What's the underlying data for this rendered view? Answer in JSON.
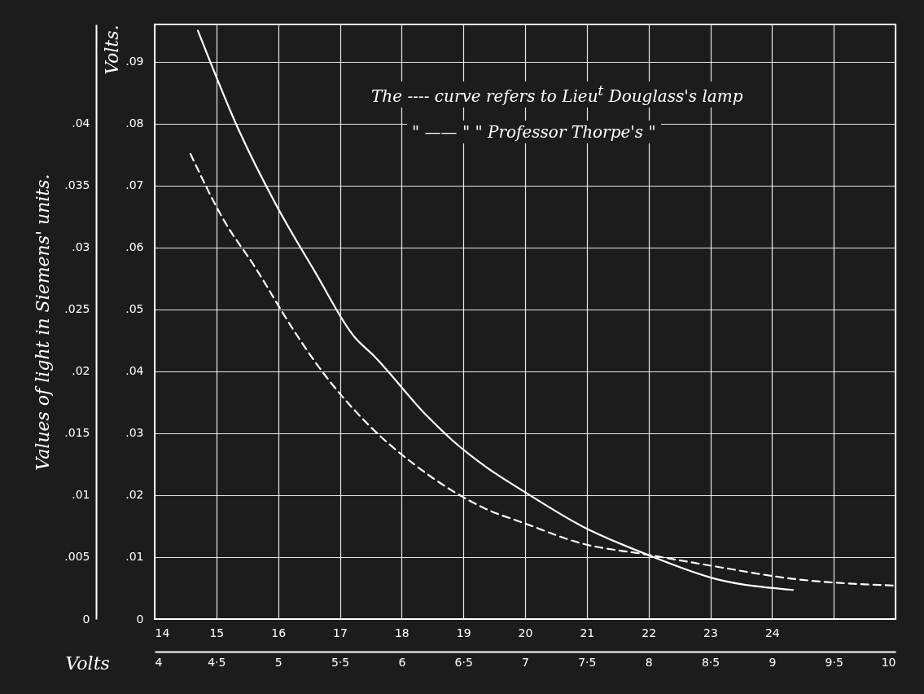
{
  "chart_data": {
    "type": "line",
    "xlabel": "Volts",
    "ylabel": "Volts.",
    "y2label": "Values of light in Siemens' units.",
    "annotations": [
      "The ---- curve refers to Lieu$^{t}$ Douglass's lamp",
      "\" —— \" \" Professor Thorpe's \""
    ],
    "xlim": [
      4,
      10
    ],
    "xticks": [
      4,
      {
        "value": 4.5,
        "label": "4·5"
      },
      5,
      {
        "value": 5.5,
        "label": "5·5"
      },
      6,
      {
        "value": 6.5,
        "label": "6·5"
      },
      7,
      {
        "value": 7.5,
        "label": "7·5"
      },
      8,
      {
        "value": 8.5,
        "label": "8·5"
      },
      9,
      {
        "value": 9.5,
        "label": "9·5"
      },
      10
    ],
    "x2lim": [
      14,
      26
    ],
    "x2ticks": [
      14,
      15,
      16,
      17,
      18,
      19,
      20,
      21,
      22,
      23,
      24
    ],
    "ylim": [
      0,
      0.096
    ],
    "yticks": [
      0,
      {
        "value": 0.01,
        "label": ".01"
      },
      {
        "value": 0.02,
        "label": ".02"
      },
      {
        "value": 0.03,
        "label": ".03"
      },
      {
        "value": 0.04,
        "label": ".04"
      },
      {
        "value": 0.05,
        "label": ".05"
      },
      {
        "value": 0.06,
        "label": ".06"
      },
      {
        "value": 0.07,
        "label": ".07"
      },
      {
        "value": 0.08,
        "label": ".08"
      },
      {
        "value": 0.09,
        "label": ".09"
      }
    ],
    "y2lim": [
      0,
      0.048
    ],
    "y2ticks": [
      0,
      {
        "value": 0.005,
        "label": ".005"
      },
      {
        "value": 0.01,
        "label": ".01"
      },
      {
        "value": 0.015,
        "label": ".015"
      },
      {
        "value": 0.02,
        "label": ".02"
      },
      {
        "value": 0.025,
        "label": ".025"
      },
      {
        "value": 0.03,
        "label": ".03"
      },
      {
        "value": 0.035,
        "label": ".035"
      },
      {
        "value": 0.04,
        "label": ".04"
      }
    ],
    "grid": true,
    "series": [
      {
        "color": "#ffffff",
        "line_style": "solid",
        "x": [
          4.35,
          4.68,
          4.98,
          5.3,
          5.62,
          5.77,
          6.21,
          6.42,
          6.68,
          6.99,
          7.46,
          7.99,
          8.54,
          9.17
        ],
        "values": [
          0.095,
          0.079,
          0.067,
          0.056,
          0.0455,
          0.0426,
          0.0327,
          0.0287,
          0.0246,
          0.0206,
          0.015,
          0.0104,
          0.0065,
          0.0047
        ]
      },
      {
        "color": "#ffffff",
        "line_style": "dashed",
        "x": [
          4.29,
          4.56,
          4.81,
          5.13,
          5.3,
          5.74,
          6.12,
          6.42,
          6.68,
          6.99,
          7.46,
          7.99,
          8.54,
          9.17,
          10
        ],
        "values": [
          0.0751,
          0.0644,
          0.0569,
          0.0465,
          0.0415,
          0.0312,
          0.0247,
          0.0206,
          0.0178,
          0.0155,
          0.0122,
          0.0104,
          0.0085,
          0.0065,
          0.0054
        ]
      }
    ]
  }
}
